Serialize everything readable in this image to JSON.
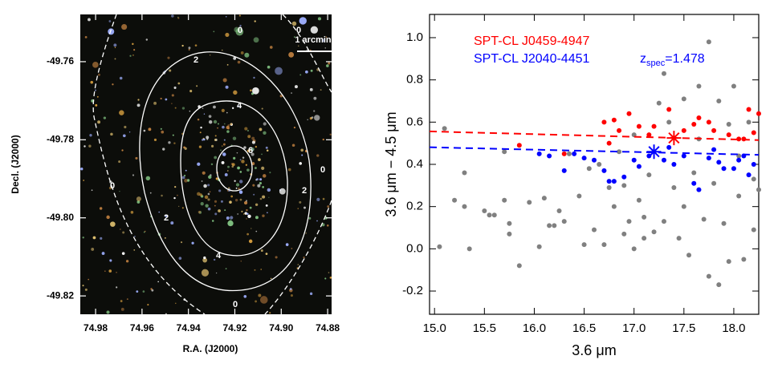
{
  "chart_data": [
    {
      "type": "image",
      "xlabel": "R.A. (J2000)",
      "ylabel": "Decl. (J2000)",
      "xlim": [
        74.9866,
        74.8783
      ],
      "xticks": [
        74.98,
        74.96,
        74.94,
        74.92,
        {
          "value": 74.9,
          "label": "74.90"
        },
        74.88
      ],
      "ylim": [
        -49.8247,
        -49.7479
      ],
      "yticks": [
        -49.76,
        -49.78,
        {
          "value": -49.8,
          "label": "-49.80"
        },
        -49.82
      ],
      "contour_levels": [
        0,
        2,
        4,
        6
      ],
      "scale_bar": "1 arcmin"
    },
    {
      "type": "scatter",
      "xlabel": "3.6 μm",
      "ylabel": "3.6 μm  −  4.5 μm",
      "xlim": [
        14.95,
        18.25
      ],
      "xticks": [
        {
          "value": 15,
          "label": "15.0"
        },
        15.5,
        {
          "value": 16,
          "label": "16.0"
        },
        16.5,
        {
          "value": 17,
          "label": "17.0"
        },
        17.5,
        {
          "value": 18,
          "label": "18.0"
        }
      ],
      "ylim": [
        -0.31,
        1.11
      ],
      "yticks": [
        -0.2,
        {
          "value": 0,
          "label": "0.0"
        },
        0.2,
        0.4,
        0.6,
        0.8,
        {
          "value": 1,
          "label": "1.0"
        }
      ],
      "annotation": {
        "text": "z",
        "sub": "spec",
        "rest": "=1.478",
        "color": "#0000ff"
      },
      "series": [
        {
          "color": "#808080",
          "x": [
            15.05,
            15.1,
            15.2,
            15.3,
            15.35,
            15.3,
            15.5,
            15.55,
            15.6,
            15.7,
            15.7,
            15.75,
            15.75,
            15.85,
            15.95,
            16.05,
            16.1,
            16.15,
            16.2,
            16.25,
            16.3,
            16.35,
            16.45,
            16.5,
            16.55,
            16.6,
            16.65,
            16.7,
            16.75,
            16.8,
            16.85,
            16.9,
            16.9,
            16.95,
            17.0,
            17.0,
            17.05,
            17.1,
            17.1,
            17.15,
            17.2,
            17.25,
            17.3,
            17.35,
            17.4,
            17.45,
            17.5,
            17.5,
            17.55,
            17.6,
            17.65,
            17.7,
            17.75,
            17.75,
            17.8,
            17.85,
            17.9,
            17.95,
            17.95,
            18.0,
            18.05,
            18.05,
            18.1,
            18.15,
            18.2,
            18.2,
            18.25,
            17.65,
            17.3,
            17.85
          ],
          "values": [
            0.01,
            0.57,
            0.23,
            0.36,
            0.0,
            0.2,
            0.18,
            0.16,
            0.16,
            0.46,
            0.23,
            0.07,
            0.12,
            -0.08,
            0.22,
            0.01,
            0.24,
            0.11,
            0.11,
            0.18,
            0.13,
            0.45,
            0.25,
            0.02,
            0.38,
            0.09,
            0.4,
            0.02,
            0.29,
            0.2,
            0.46,
            0.07,
            0.3,
            0.13,
            0.54,
            0.0,
            0.23,
            0.15,
            0.05,
            0.35,
            0.08,
            0.69,
            0.13,
            0.6,
            0.29,
            0.05,
            0.2,
            0.71,
            -0.03,
            0.36,
            0.52,
            0.14,
            0.98,
            -0.13,
            0.31,
            0.7,
            0.12,
            0.59,
            -0.06,
            0.77,
            0.25,
            0.44,
            -0.05,
            0.6,
            0.33,
            0.09,
            0.28,
            0.77,
            0.83,
            -0.17
          ]
        },
        {
          "name": "SPT-CL J0459-4947",
          "color": "#ff0000",
          "x": [
            15.85,
            16.3,
            16.7,
            16.8,
            16.85,
            16.95,
            17.15,
            17.2,
            17.35,
            17.5,
            17.6,
            17.65,
            17.75,
            17.8,
            17.95,
            18.05,
            18.1,
            18.15,
            18.2,
            18.25,
            17.05,
            16.75
          ],
          "values": [
            0.49,
            0.45,
            0.6,
            0.61,
            0.56,
            0.64,
            0.54,
            0.58,
            0.66,
            0.56,
            0.59,
            0.62,
            0.6,
            0.56,
            0.54,
            0.52,
            0.52,
            0.66,
            0.55,
            0.64,
            0.58,
            0.5
          ]
        },
        {
          "name": "SPT-CL J2040-4451",
          "color": "#0000ff",
          "x": [
            16.05,
            16.15,
            16.3,
            16.4,
            16.5,
            16.6,
            16.7,
            16.75,
            16.8,
            16.9,
            17.0,
            17.05,
            17.15,
            17.3,
            17.4,
            17.5,
            17.6,
            17.65,
            17.75,
            17.8,
            17.85,
            17.9,
            18.0,
            18.05,
            18.1,
            18.15,
            18.2,
            17.35
          ],
          "values": [
            0.45,
            0.44,
            0.37,
            0.45,
            0.43,
            0.42,
            0.37,
            0.32,
            0.32,
            0.34,
            0.42,
            0.39,
            0.44,
            0.42,
            0.4,
            0.44,
            0.31,
            0.28,
            0.43,
            0.47,
            0.41,
            0.38,
            0.38,
            0.42,
            0.44,
            0.35,
            0.4,
            0.48
          ]
        }
      ],
      "fit_lines": [
        {
          "color": "#ff0000",
          "x": [
            14.95,
            18.25
          ],
          "values": [
            0.556,
            0.515
          ]
        },
        {
          "color": "#0000ff",
          "x": [
            14.95,
            18.25
          ],
          "values": [
            0.481,
            0.445
          ]
        }
      ],
      "stars": [
        {
          "color": "#ff0000",
          "x": 17.4,
          "value": 0.525
        },
        {
          "color": "#0000ff",
          "x": 17.2,
          "value": 0.46
        }
      ]
    }
  ]
}
